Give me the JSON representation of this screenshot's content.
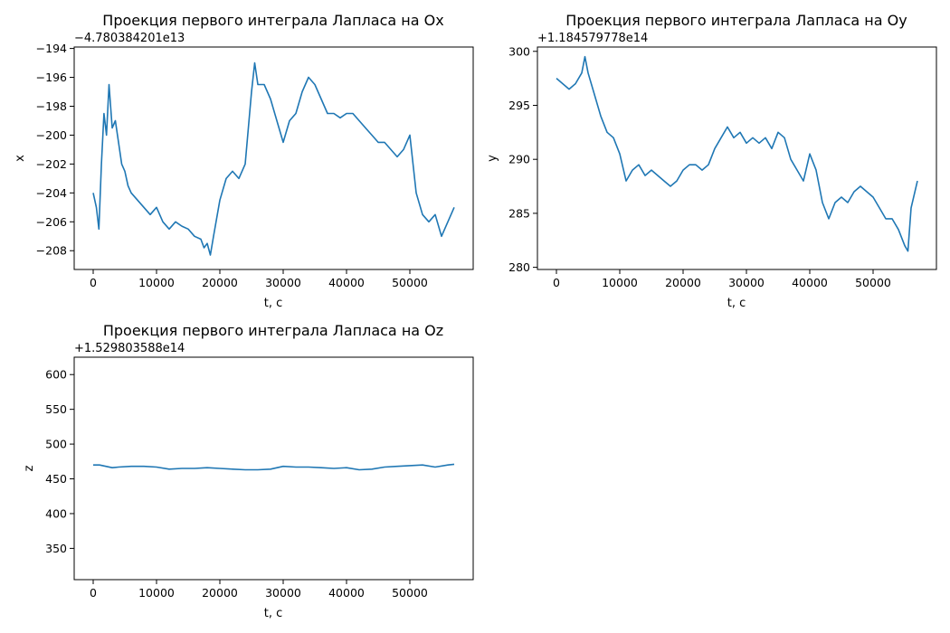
{
  "chart_data": [
    {
      "type": "line",
      "title": "Проекция первого интеграла Лапласа на Ox",
      "xlabel": "t, c",
      "ylabel": "x",
      "offset_text": "−4.780384201e13",
      "xlim": [
        -3000,
        60000
      ],
      "ylim": [
        -209.3,
        -193.9
      ],
      "xticks": [
        0,
        10000,
        20000,
        30000,
        40000,
        50000
      ],
      "yticks": [
        -208,
        -206,
        -204,
        -202,
        -200,
        -198,
        -196,
        -194
      ],
      "color": "#1f77b4",
      "series": [
        {
          "x": [
            0,
            500,
            900,
            1300,
            1700,
            2100,
            2500,
            3000,
            3500,
            4000,
            4500,
            5000,
            5500,
            6000,
            7000,
            8000,
            9000,
            10000,
            11000,
            12000,
            13000,
            14000,
            15000,
            16000,
            17000,
            17500,
            18000,
            18500,
            19000,
            20000,
            21000,
            22000,
            23000,
            24000,
            25000,
            25500,
            26000,
            27000,
            28000,
            29000,
            30000,
            31000,
            32000,
            33000,
            34000,
            35000,
            36000,
            37000,
            38000,
            39000,
            40000,
            41000,
            42000,
            43000,
            44000,
            45000,
            46000,
            47000,
            48000,
            49000,
            50000,
            51000,
            52000,
            53000,
            54000,
            55000,
            56000,
            57000
          ],
          "y": [
            -204,
            -205,
            -206.5,
            -202,
            -198.5,
            -200,
            -196.5,
            -199.5,
            -199,
            -200.5,
            -202,
            -202.5,
            -203.5,
            -204,
            -204.5,
            -205,
            -205.5,
            -205,
            -206,
            -206.5,
            -206,
            -206.3,
            -206.5,
            -207,
            -207.2,
            -207.8,
            -207.5,
            -208.3,
            -207,
            -204.5,
            -203,
            -202.5,
            -203,
            -202,
            -197,
            -195,
            -196.5,
            -196.5,
            -197.5,
            -199,
            -200.5,
            -199,
            -198.5,
            -197,
            -196,
            -196.5,
            -197.5,
            -198.5,
            -198.5,
            -198.8,
            -198.5,
            -198.5,
            -199,
            -199.5,
            -200,
            -200.5,
            -200.5,
            -201,
            -201.5,
            -201,
            -200,
            -204,
            -205.5,
            -206,
            -205.5,
            -207,
            -206,
            -205
          ]
        }
      ]
    },
    {
      "type": "line",
      "title": "Проекция первого интеграла Лапласа на Oy",
      "xlabel": "t, c",
      "ylabel": "y",
      "offset_text": "+1.184579778e14",
      "xlim": [
        -3000,
        60000
      ],
      "ylim": [
        279.8,
        300.4
      ],
      "xticks": [
        0,
        10000,
        20000,
        30000,
        40000,
        50000
      ],
      "yticks": [
        280,
        285,
        290,
        295,
        300
      ],
      "color": "#1f77b4",
      "series": [
        {
          "x": [
            0,
            1000,
            2000,
            3000,
            4000,
            4500,
            5000,
            6000,
            7000,
            8000,
            9000,
            10000,
            11000,
            12000,
            13000,
            14000,
            15000,
            16000,
            17000,
            18000,
            19000,
            20000,
            21000,
            22000,
            23000,
            24000,
            25000,
            26000,
            27000,
            28000,
            29000,
            30000,
            31000,
            32000,
            33000,
            34000,
            35000,
            36000,
            37000,
            38000,
            39000,
            40000,
            41000,
            42000,
            43000,
            44000,
            45000,
            46000,
            47000,
            48000,
            49000,
            50000,
            51000,
            52000,
            53000,
            54000,
            55000,
            55500,
            56000,
            57000
          ],
          "y": [
            297.5,
            297,
            296.5,
            297,
            298,
            299.5,
            298,
            296,
            294,
            292.5,
            292,
            290.5,
            288,
            289,
            289.5,
            288.5,
            289,
            288.5,
            288,
            287.5,
            288,
            289,
            289.5,
            289.5,
            289,
            289.5,
            291,
            292,
            293,
            292,
            292.5,
            291.5,
            292,
            291.5,
            292,
            291,
            292.5,
            292,
            290,
            289,
            288,
            290.5,
            289,
            286,
            284.5,
            286,
            286.5,
            286,
            287,
            287.5,
            287,
            286.5,
            285.5,
            284.5,
            284.5,
            283.5,
            282,
            281.5,
            285.5,
            288
          ]
        }
      ]
    },
    {
      "type": "line",
      "title": "Проекция первого интеграла Лапласа на Oz",
      "xlabel": "t, c",
      "ylabel": "z",
      "offset_text": "+1.529803588e14",
      "xlim": [
        -3000,
        60000
      ],
      "ylim": [
        305,
        625
      ],
      "xticks": [
        0,
        10000,
        20000,
        30000,
        40000,
        50000
      ],
      "yticks": [
        350,
        400,
        450,
        500,
        550,
        600
      ],
      "color": "#1f77b4",
      "series": [
        {
          "x": [
            0,
            1000,
            2000,
            3000,
            4000,
            6000,
            8000,
            10000,
            12000,
            14000,
            16000,
            18000,
            20000,
            22000,
            24000,
            26000,
            28000,
            30000,
            32000,
            34000,
            36000,
            38000,
            40000,
            42000,
            44000,
            46000,
            48000,
            50000,
            52000,
            54000,
            56000,
            57000
          ],
          "y": [
            470,
            470,
            468,
            466,
            467,
            468,
            468,
            467,
            464,
            465,
            465,
            466,
            465,
            464,
            463,
            463,
            464,
            468,
            467,
            467,
            466,
            465,
            466,
            463,
            464,
            467,
            468,
            469,
            470,
            467,
            470,
            471
          ]
        }
      ]
    }
  ]
}
